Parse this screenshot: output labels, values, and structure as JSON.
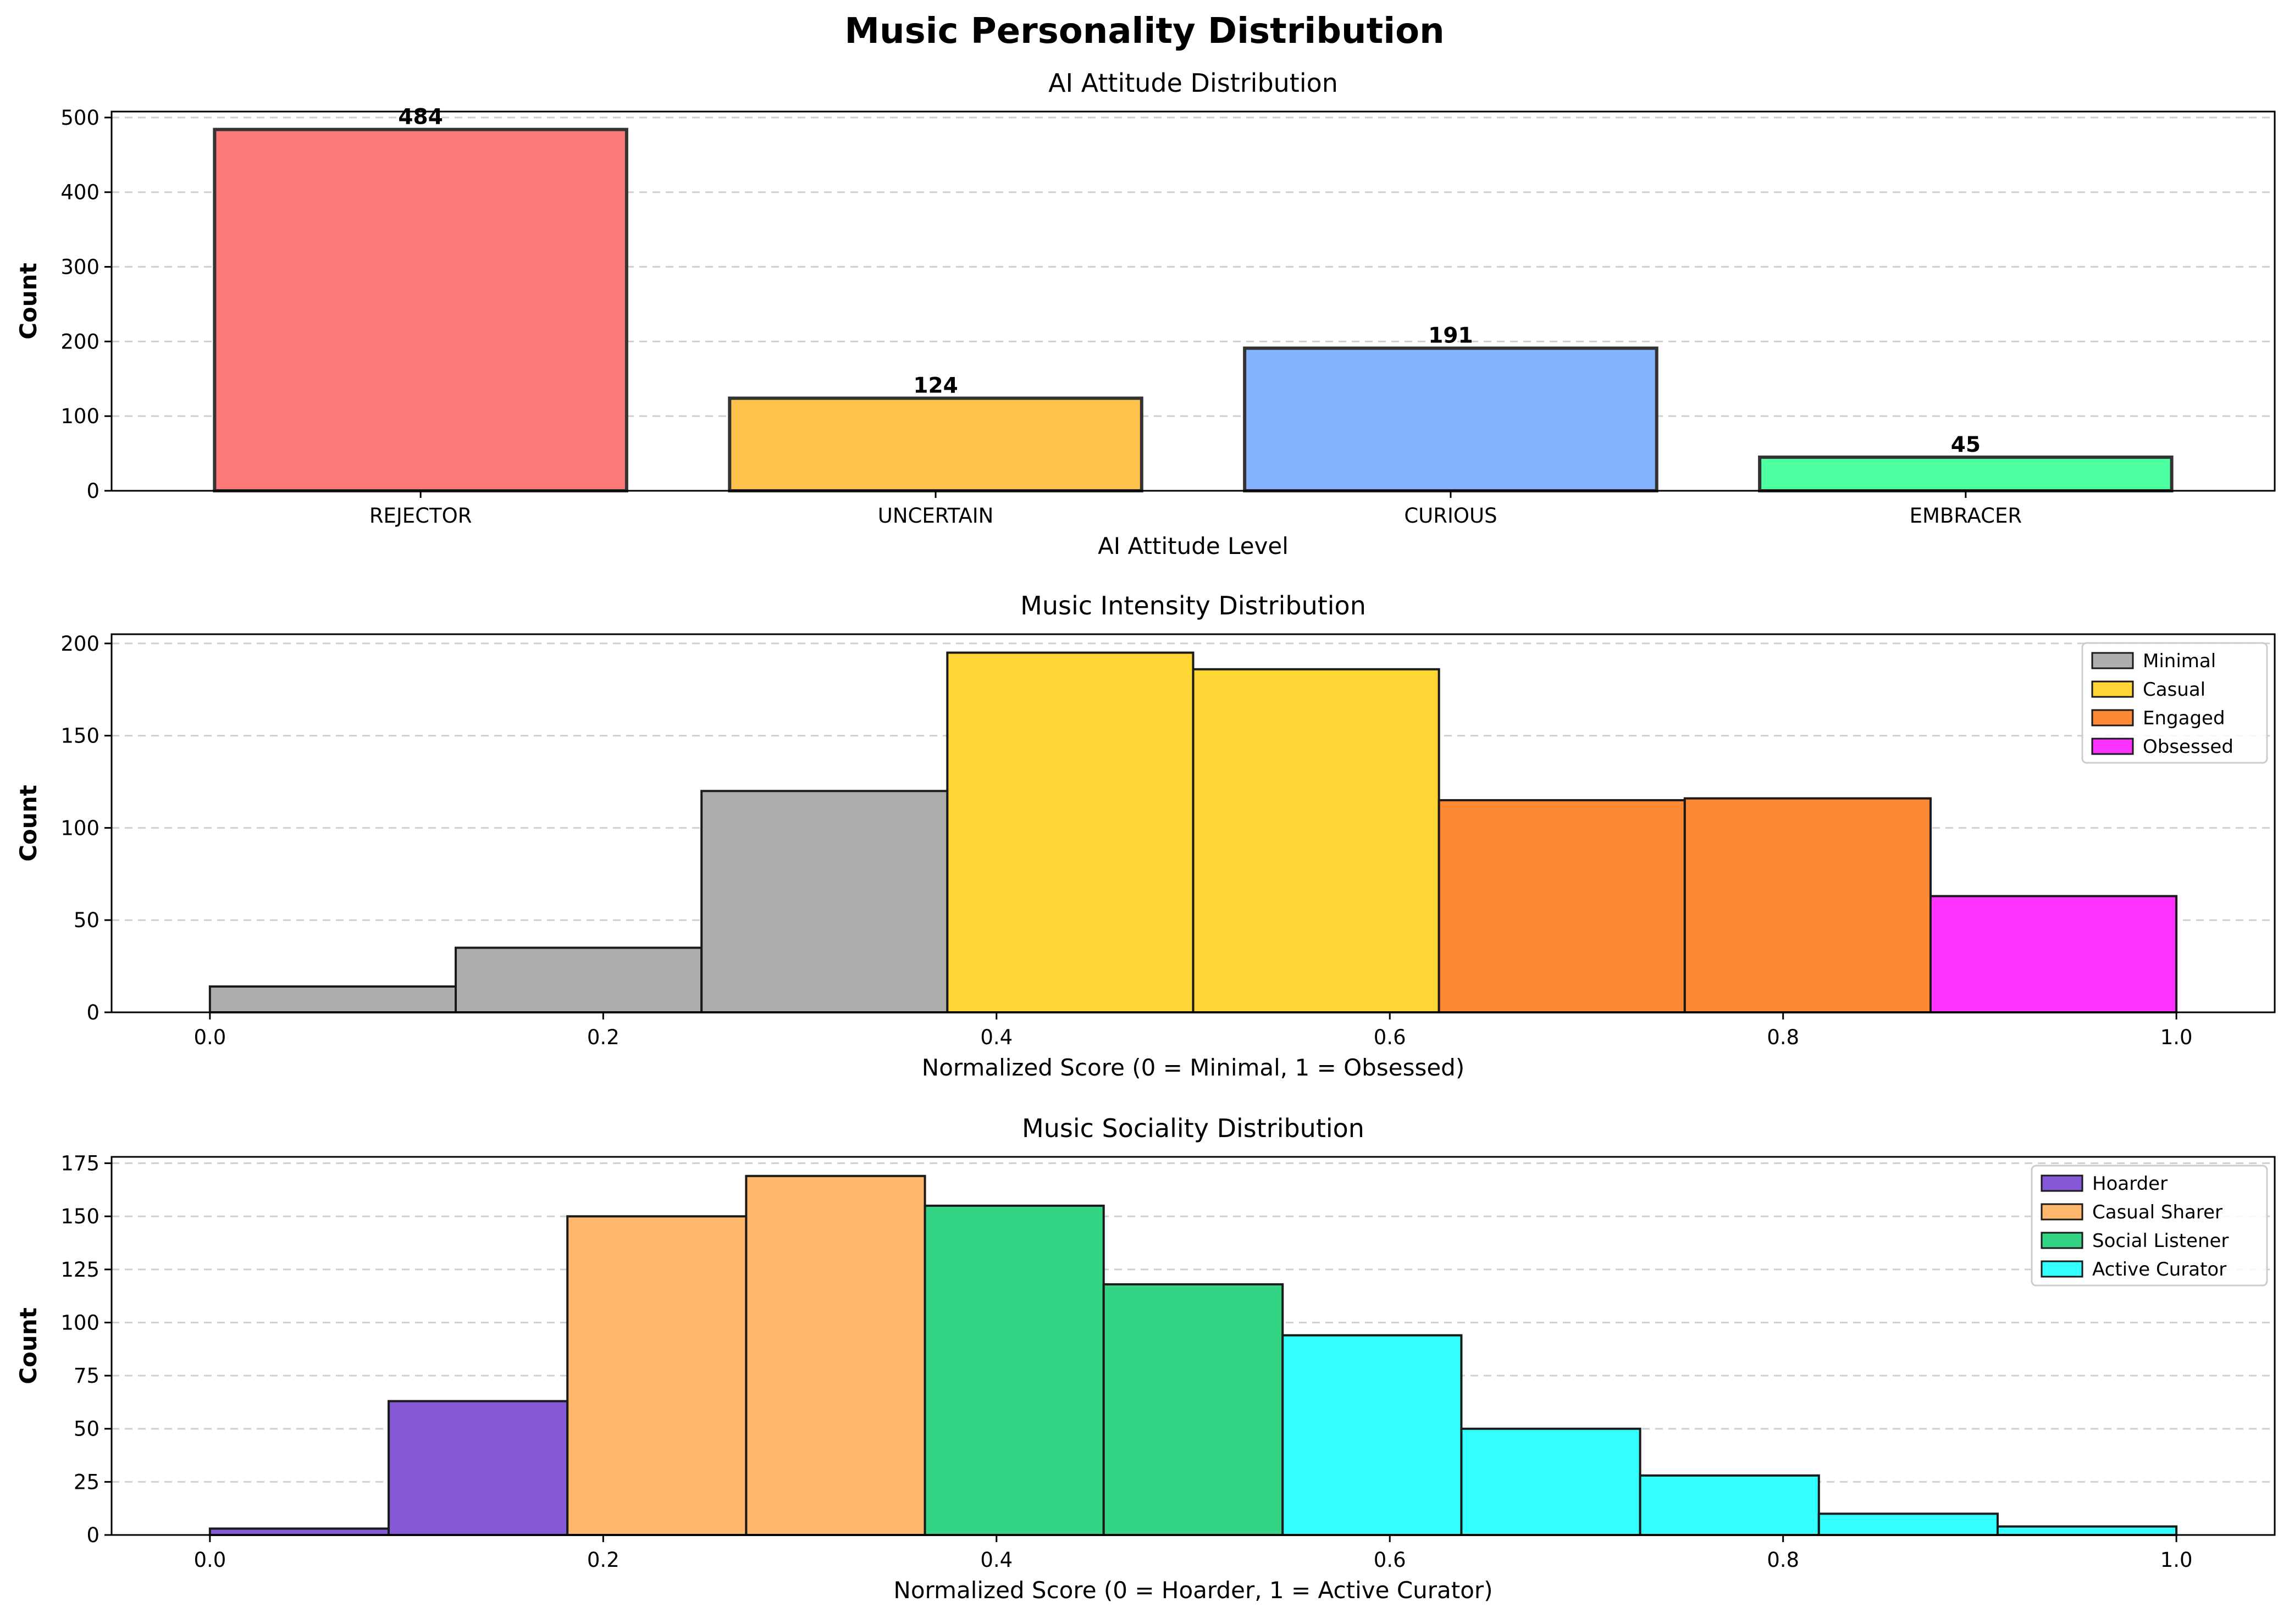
{
  "suptitle": "Music Personality Distribution",
  "chart_data": [
    {
      "type": "bar",
      "title": "AI Attitude Distribution",
      "xlabel": "AI Attitude Level",
      "ylabel": "Count",
      "categories": [
        "REJECTOR",
        "UNCERTAIN",
        "CURIOUS",
        "EMBRACER"
      ],
      "values": [
        484,
        124,
        191,
        45
      ],
      "value_labels": [
        "484",
        "124",
        "191",
        "45"
      ],
      "colors": [
        "#ff7b7b",
        "#ffc24d",
        "#86b3ff",
        "#4cff9f"
      ],
      "ylim": [
        0,
        508
      ],
      "yticks": [
        0,
        100,
        200,
        300,
        400,
        500
      ],
      "grid": "y-dashed"
    },
    {
      "type": "bar",
      "histogram": true,
      "title": "Music Intensity Distribution",
      "xlabel": "Normalized Score (0 = Minimal, 1 = Obsessed)",
      "ylabel": "Count",
      "xlim": [
        -0.05,
        1.05
      ],
      "ylim": [
        0,
        205
      ],
      "xticks": [
        0.0,
        0.2,
        0.4,
        0.6,
        0.8,
        1.0
      ],
      "xtick_labels": [
        "0.0",
        "0.2",
        "0.4",
        "0.6",
        "0.8",
        "1.0"
      ],
      "yticks": [
        0,
        50,
        100,
        150,
        200
      ],
      "grid": "y-dashed",
      "legend_position": "top-right",
      "legend": [
        {
          "name": "Minimal",
          "color": "#aeaeae"
        },
        {
          "name": "Casual",
          "color": "#ffd633"
        },
        {
          "name": "Engaged",
          "color": "#ff8833"
        },
        {
          "name": "Obsessed",
          "color": "#ff33ff"
        }
      ],
      "bins": [
        {
          "x0": 0.0,
          "x1": 0.125,
          "value": 14,
          "group": "Minimal"
        },
        {
          "x0": 0.125,
          "x1": 0.25,
          "value": 35,
          "group": "Minimal"
        },
        {
          "x0": 0.25,
          "x1": 0.375,
          "value": 120,
          "group": "Minimal"
        },
        {
          "x0": 0.375,
          "x1": 0.5,
          "value": 195,
          "group": "Casual"
        },
        {
          "x0": 0.5,
          "x1": 0.625,
          "value": 186,
          "group": "Casual"
        },
        {
          "x0": 0.625,
          "x1": 0.75,
          "value": 115,
          "group": "Engaged"
        },
        {
          "x0": 0.75,
          "x1": 0.875,
          "value": 116,
          "group": "Engaged"
        },
        {
          "x0": 0.875,
          "x1": 1.0,
          "value": 63,
          "group": "Obsessed"
        }
      ]
    },
    {
      "type": "bar",
      "histogram": true,
      "title": "Music Sociality Distribution",
      "xlabel": "Normalized Score (0 = Hoarder, 1 = Active Curator)",
      "ylabel": "Count",
      "xlim": [
        -0.05,
        1.05
      ],
      "ylim": [
        0,
        178
      ],
      "xticks": [
        0.0,
        0.2,
        0.4,
        0.6,
        0.8,
        1.0
      ],
      "xtick_labels": [
        "0.0",
        "0.2",
        "0.4",
        "0.6",
        "0.8",
        "1.0"
      ],
      "yticks": [
        0,
        25,
        50,
        75,
        100,
        125,
        150,
        175
      ],
      "grid": "y-dashed",
      "legend_position": "top-right",
      "legend": [
        {
          "name": "Hoarder",
          "color": "#8458d6"
        },
        {
          "name": "Casual Sharer",
          "color": "#ffb86b"
        },
        {
          "name": "Social Listener",
          "color": "#33d483"
        },
        {
          "name": "Active Curator",
          "color": "#33ffff"
        }
      ],
      "bins": [
        {
          "x0": 0.0,
          "x1": 0.0909,
          "value": 3,
          "group": "Hoarder"
        },
        {
          "x0": 0.0909,
          "x1": 0.1818,
          "value": 63,
          "group": "Hoarder"
        },
        {
          "x0": 0.1818,
          "x1": 0.2727,
          "value": 150,
          "group": "Casual Sharer"
        },
        {
          "x0": 0.2727,
          "x1": 0.3636,
          "value": 169,
          "group": "Casual Sharer"
        },
        {
          "x0": 0.3636,
          "x1": 0.4545,
          "value": 155,
          "group": "Social Listener"
        },
        {
          "x0": 0.4545,
          "x1": 0.5455,
          "value": 118,
          "group": "Social Listener"
        },
        {
          "x0": 0.5455,
          "x1": 0.6364,
          "value": 94,
          "group": "Active Curator"
        },
        {
          "x0": 0.6364,
          "x1": 0.7273,
          "value": 50,
          "group": "Active Curator"
        },
        {
          "x0": 0.7273,
          "x1": 0.8182,
          "value": 28,
          "group": "Active Curator"
        },
        {
          "x0": 0.8182,
          "x1": 0.9091,
          "value": 10,
          "group": "Active Curator"
        },
        {
          "x0": 0.9091,
          "x1": 1.0,
          "value": 4,
          "group": "Active Curator"
        }
      ]
    }
  ]
}
